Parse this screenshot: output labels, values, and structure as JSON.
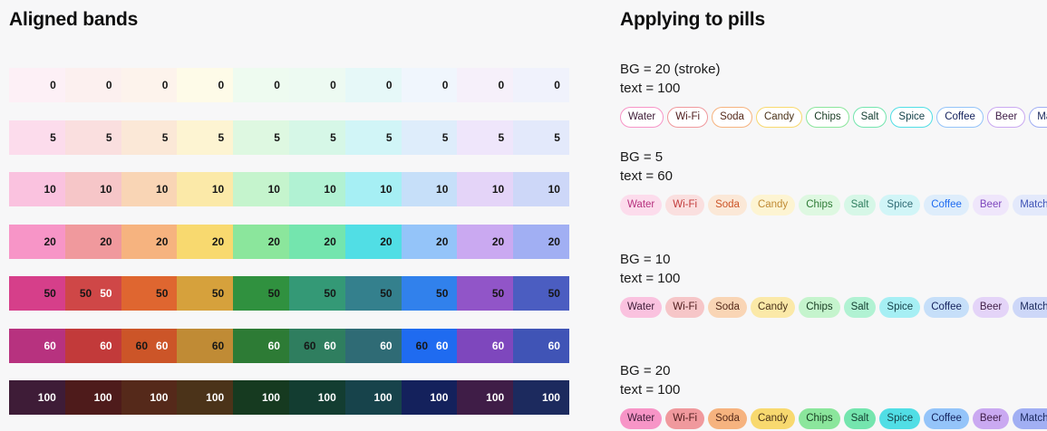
{
  "page": {
    "background": "#f7f7f8"
  },
  "left": {
    "title": "Aligned bands",
    "hues": [
      "pink",
      "rose",
      "orange",
      "yellow",
      "green",
      "emerald",
      "cyan",
      "blue",
      "purple",
      "indigo"
    ],
    "band_order": [
      "0",
      "5",
      "10",
      "20",
      "50",
      "60",
      "100"
    ],
    "band_colors": {
      "0": [
        "#fdf0f6",
        "#fcf0ef",
        "#fdf3ec",
        "#fefbe8",
        "#eefbf0",
        "#edfaf2",
        "#e6f8f8",
        "#f0f6fd",
        "#f6f0fa",
        "#f0f2fc"
      ],
      "5": [
        "#fcdcec",
        "#fadfdf",
        "#fbe8d7",
        "#fdf4d2",
        "#def8e1",
        "#d6f7e7",
        "#d1f5f7",
        "#deedfb",
        "#efe6fb",
        "#e3e9fb"
      ],
      "10": [
        "#fac2df",
        "#f6c6c8",
        "#f9d5b5",
        "#fbe9a8",
        "#c5f4cd",
        "#b1f2d3",
        "#a6eff4",
        "#c6dff9",
        "#e4d4f8",
        "#cdd7f8"
      ],
      "20": [
        "#f795c7",
        "#f0999d",
        "#f6b37f",
        "#f8d96f",
        "#8be69c",
        "#74e5ae",
        "#51dee5",
        "#94c4f9",
        "#caa9f1",
        "#a1aff3"
      ],
      "50": [
        "#d63f8a",
        "#cf4747",
        "#df6630",
        "#d6a13c",
        "#30913f",
        "#349976",
        "#34808d",
        "#3181ec",
        "#9155c8",
        "#4b5dc1"
      ],
      "60": [
        "#b7327f",
        "#c23a3a",
        "#cc5528",
        "#c08b35",
        "#2d7b35",
        "#2f7e5f",
        "#2f6b75",
        "#1f6bf0",
        "#7e47bd",
        "#4054b6"
      ],
      "100": [
        "#3e1c37",
        "#4e1b1b",
        "#55291a",
        "#4b3319",
        "#163a20",
        "#133d31",
        "#17434b",
        "#14215c",
        "#3f1d47",
        "#1c2a5e"
      ]
    },
    "label_styles": {
      "0": [
        "dark",
        "dark",
        "dark",
        "dark",
        "dark",
        "dark",
        "dark",
        "dark",
        "dark",
        "dark"
      ],
      "5": [
        "dark",
        "dark",
        "dark",
        "dark",
        "dark",
        "dark",
        "dark",
        "dark",
        "dark",
        "dark"
      ],
      "10": [
        "dark",
        "dark",
        "dark",
        "dark",
        "dark",
        "dark",
        "dark",
        "dark",
        "dark",
        "dark"
      ],
      "20": [
        "dark",
        "dark",
        "dark",
        "dark",
        "dark",
        "dark",
        "dark",
        "dark",
        "dark",
        "dark"
      ],
      "50": [
        "dark",
        "both",
        "dark",
        "dark",
        "dark",
        "dark",
        "dark",
        "dark",
        "dark",
        "dark"
      ],
      "60": [
        "light",
        "light",
        "both",
        "dark",
        "light",
        "both",
        "light",
        "both",
        "light",
        "light"
      ],
      "100": [
        "light",
        "light",
        "light",
        "light",
        "light",
        "light",
        "light",
        "light",
        "light",
        "light"
      ]
    },
    "text_dark": "#161616",
    "text_light": "#ffffff"
  },
  "right": {
    "title": "Applying to pills",
    "pill_labels": [
      "Water",
      "Wi-Fi",
      "Soda",
      "Candy",
      "Chips",
      "Salt",
      "Spice",
      "Coffee",
      "Beer",
      "Matcha"
    ],
    "stroke_pill_background": "#ffffff",
    "groups": [
      {
        "line1": "BG = 20 (stroke)",
        "line2": "text = 100",
        "mode": "stroke",
        "bg_band": "20",
        "text_band": "100"
      },
      {
        "line1": "BG = 5",
        "line2": "text = 60",
        "mode": "fill",
        "bg_band": "5",
        "text_band": "60"
      },
      {
        "line1": "BG = 10",
        "line2": "text = 100",
        "mode": "fill",
        "bg_band": "10",
        "text_band": "100"
      },
      {
        "line1": "BG = 20",
        "line2": "text = 100",
        "mode": "fill",
        "bg_band": "20",
        "text_band": "100"
      }
    ]
  }
}
